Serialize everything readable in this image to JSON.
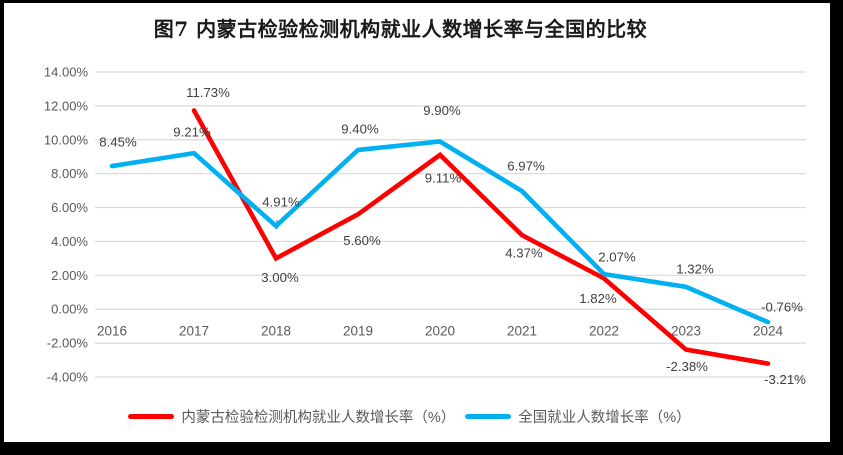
{
  "chart_data": {
    "type": "line",
    "title": "图7 内蒙古检验检测机构就业人数增长率与全国的比较",
    "categories": [
      "2016",
      "2017",
      "2018",
      "2019",
      "2020",
      "2021",
      "2022",
      "2023",
      "2024"
    ],
    "series": [
      {
        "name": "内蒙古检验检测机构就业人数增长率（%）",
        "color": "#FF0000",
        "values": [
          null,
          11.73,
          3.0,
          5.6,
          9.11,
          4.37,
          1.82,
          -2.38,
          -3.21
        ],
        "labels": [
          "",
          "11.73%",
          "3.00%",
          "5.60%",
          "9.11%",
          "4.37%",
          "1.82%",
          "-2.38%",
          "-3.21%"
        ],
        "label_offsets": [
          [
            0,
            0
          ],
          [
            14,
            -18
          ],
          [
            4,
            19
          ],
          [
            4,
            26
          ],
          [
            3,
            23
          ],
          [
            2,
            18
          ],
          [
            -6,
            20
          ],
          [
            1,
            17
          ],
          [
            17,
            16
          ]
        ]
      },
      {
        "name": "全国就业人数增长率（%）",
        "color": "#00B0F0",
        "values": [
          8.45,
          9.21,
          4.91,
          9.4,
          9.9,
          6.97,
          2.07,
          1.32,
          -0.76
        ],
        "labels": [
          "8.45%",
          "9.21%",
          "4.91%",
          "9.40%",
          "9.90%",
          "6.97%",
          "2.07%",
          "1.32%",
          "-0.76%"
        ],
        "label_offsets": [
          [
            6,
            -24
          ],
          [
            -2,
            -21
          ],
          [
            5,
            -24
          ],
          [
            2,
            -21
          ],
          [
            2,
            -31
          ],
          [
            4,
            -25
          ],
          [
            13,
            -17
          ],
          [
            9,
            -18
          ],
          [
            14,
            -15
          ]
        ]
      }
    ],
    "xlabel": "",
    "ylabel": "",
    "ylim": [
      -4,
      14
    ],
    "ytick_values": [
      14,
      12,
      10,
      8,
      6,
      4,
      2,
      0,
      -2,
      -4
    ],
    "ytick_labels": [
      "14.00%",
      "12.00%",
      "10.00%",
      "8.00%",
      "6.00%",
      "4.00%",
      "2.00%",
      "0.00%",
      "-2.00%",
      "-4.00%"
    ],
    "grid": "horizontal",
    "legend_position": "bottom",
    "colors": {
      "gridline": "#D9D9D9",
      "axis_text": "#595959",
      "data_label_text": "#404040",
      "title_text": "#1a1a1a",
      "background": "#ffffff",
      "outer_border": "#000000"
    }
  }
}
